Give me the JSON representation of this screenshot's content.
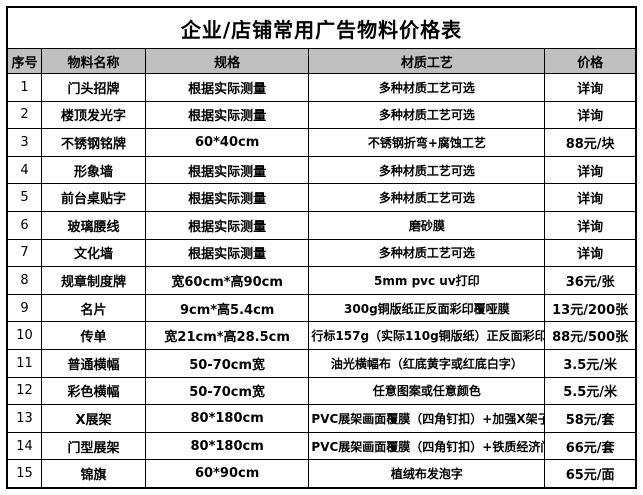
{
  "title": "企业/店铺常用广告物料价格表",
  "columns": [
    "序号",
    "物料名称",
    "规格",
    "材质工艺",
    "价格"
  ],
  "rows": [
    {
      "no": "1",
      "name": "门头招牌",
      "spec": "根据实际测量",
      "craft": "多种材质工艺可选",
      "price": "详询"
    },
    {
      "no": "2",
      "name": "楼顶发光字",
      "spec": "根据实际测量",
      "craft": "多种材质工艺可选",
      "price": "详询"
    },
    {
      "no": "3",
      "name": "不锈钢铭牌",
      "spec": "60*40cm",
      "craft": "不锈钢折弯+腐蚀工艺",
      "price": "88元/块"
    },
    {
      "no": "4",
      "name": "形象墙",
      "spec": "根据实际测量",
      "craft": "多种材质工艺可选",
      "price": "详询"
    },
    {
      "no": "5",
      "name": "前台桌贴字",
      "spec": "根据实际测量",
      "craft": "多种材质工艺可选",
      "price": "详询"
    },
    {
      "no": "6",
      "name": "玻璃腰线",
      "spec": "根据实际测量",
      "craft": "磨砂膜",
      "price": "详询"
    },
    {
      "no": "7",
      "name": "文化墙",
      "spec": "根据实际测量",
      "craft": "多种材质工艺可选",
      "price": "详询"
    },
    {
      "no": "8",
      "name": "规章制度牌",
      "spec": "宽60cm*高90cm",
      "craft": "5mm pvc uv打印",
      "price": "36元/张"
    },
    {
      "no": "9",
      "name": "名片",
      "spec": "9cm*高5.4cm",
      "craft": "300g铜版纸正反面彩印覆哑膜",
      "price": "13元/200张"
    },
    {
      "no": "10",
      "name": "传单",
      "spec": "宽21cm*高28.5cm",
      "craft": "行标157g（实际110g铜版纸）正反面彩印",
      "price": "88元/500张"
    },
    {
      "no": "11",
      "name": "普通横幅",
      "spec": "50-70cm宽",
      "craft": "油光横幅布（红底黄字或红底白字）",
      "price": "3.5元/米"
    },
    {
      "no": "12",
      "name": "彩色横幅",
      "spec": "50-70cm宽",
      "craft": "任意图案或任意颜色",
      "price": "5.5元/米"
    },
    {
      "no": "13",
      "name": "X展架",
      "spec": "80*180cm",
      "craft": "PVC展架画面覆膜（四角钉扣）+加强X架子",
      "price": "58元/套"
    },
    {
      "no": "14",
      "name": "门型展架",
      "spec": "80*180cm",
      "craft": "PVC展架画面覆膜（四角钉扣）+铁质经济门型展架",
      "price": "66元/套"
    },
    {
      "no": "15",
      "name": "锦旗",
      "spec": "60*90cm",
      "craft": "植绒布发泡字",
      "price": "65元/面"
    }
  ],
  "colors": {
    "header_bg": "#c0c0c0",
    "border": "#000000",
    "table_bg": "#ffffff"
  }
}
